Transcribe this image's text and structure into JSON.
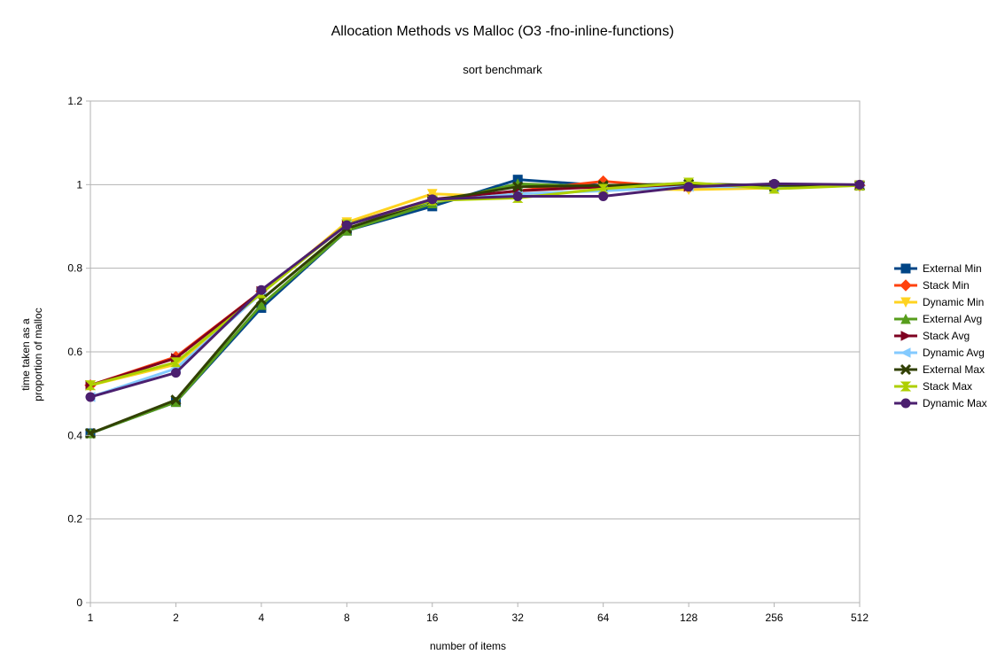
{
  "chart_data": {
    "type": "line",
    "title": "Allocation Methods vs Malloc (O3 -fno-inline-functions)",
    "subtitle": "sort benchmark",
    "xlabel": "number of items",
    "ylabel_lines": [
      "time taken as a",
      "proportion of malloc"
    ],
    "x": [
      "1",
      "2",
      "4",
      "8",
      "16",
      "32",
      "64",
      "128",
      "256",
      "512"
    ],
    "y_ticks": [
      "0",
      "0.2",
      "0.4",
      "0.6",
      "0.8",
      "1",
      "1.2"
    ],
    "ylim": [
      0,
      1.2
    ],
    "grid": true,
    "legend_position": "right",
    "series": [
      {
        "name": "External Min",
        "color": "#004586",
        "marker": "square",
        "values": [
          0.405,
          0.48,
          0.705,
          0.89,
          0.948,
          1.012,
          0.998,
          0.998,
          0.995,
          0.998
        ]
      },
      {
        "name": "Stack Min",
        "color": "#ff420e",
        "marker": "diamond",
        "values": [
          0.52,
          0.588,
          0.745,
          0.905,
          0.96,
          0.985,
          1.008,
          0.992,
          0.998,
          0.998
        ]
      },
      {
        "name": "Dynamic Min",
        "color": "#ffd320",
        "marker": "triangle-down",
        "values": [
          0.52,
          0.57,
          0.74,
          0.91,
          0.978,
          0.97,
          0.99,
          0.988,
          0.992,
          0.998
        ]
      },
      {
        "name": "External Avg",
        "color": "#579d1c",
        "marker": "triangle-up",
        "values": [
          0.405,
          0.48,
          0.712,
          0.89,
          0.955,
          1.002,
          0.995,
          1.002,
          0.995,
          0.998
        ]
      },
      {
        "name": "Stack Avg",
        "color": "#7e0021",
        "marker": "triangle-right",
        "values": [
          0.52,
          0.585,
          0.745,
          0.905,
          0.965,
          0.985,
          0.995,
          0.995,
          0.998,
          0.998
        ]
      },
      {
        "name": "Dynamic Avg",
        "color": "#83caff",
        "marker": "triangle-left",
        "values": [
          0.492,
          0.56,
          0.74,
          0.905,
          0.96,
          0.978,
          0.985,
          0.995,
          0.995,
          0.998
        ]
      },
      {
        "name": "External Max",
        "color": "#314004",
        "marker": "x",
        "values": [
          0.405,
          0.485,
          0.725,
          0.895,
          0.962,
          0.995,
          0.998,
          1.002,
          0.998,
          0.998
        ]
      },
      {
        "name": "Stack Max",
        "color": "#aecf00",
        "marker": "hourglass",
        "values": [
          0.52,
          0.575,
          0.74,
          0.905,
          0.962,
          0.968,
          0.99,
          1.005,
          0.99,
          0.998
        ]
      },
      {
        "name": "Dynamic Max",
        "color": "#4b1f6f",
        "marker": "circle",
        "values": [
          0.492,
          0.55,
          0.748,
          0.903,
          0.965,
          0.972,
          0.972,
          0.995,
          1.002,
          1.0
        ]
      }
    ]
  }
}
